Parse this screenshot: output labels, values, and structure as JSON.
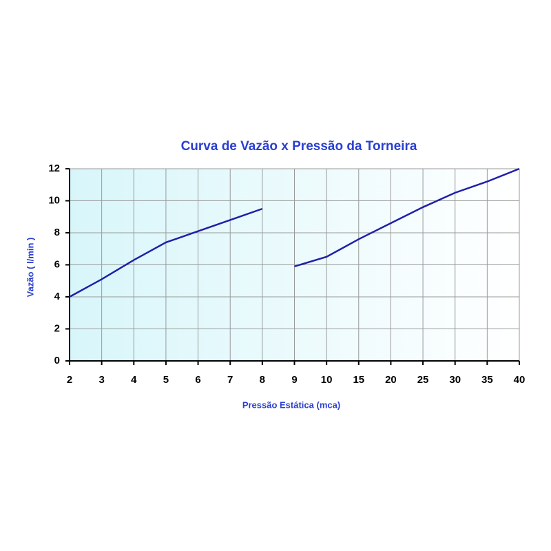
{
  "chart_data": {
    "type": "line",
    "title": "Curva de Vazão x Pressão da Torneira",
    "x_label": "Pressão Estática (mca)",
    "y_label": "Vazão ( l/min )",
    "categories": [
      "2",
      "3",
      "4",
      "5",
      "6",
      "7",
      "8",
      "9",
      "10",
      "15",
      "20",
      "25",
      "30",
      "35",
      "40"
    ],
    "series": [
      {
        "color": "#1f1fa8",
        "values": [
          4.0,
          5.1,
          6.3,
          7.4,
          8.1,
          8.8,
          9.5,
          null,
          null,
          null,
          null,
          null,
          null,
          null,
          null
        ]
      },
      {
        "color": "#1f1fa8",
        "values": [
          null,
          null,
          null,
          null,
          null,
          null,
          null,
          5.9,
          6.5,
          7.6,
          8.6,
          9.6,
          10.5,
          11.2,
          12.0
        ]
      }
    ],
    "ylim": [
      0,
      12
    ],
    "yticks": [
      0,
      2,
      4,
      6,
      8,
      10,
      12
    ],
    "grid": true
  }
}
